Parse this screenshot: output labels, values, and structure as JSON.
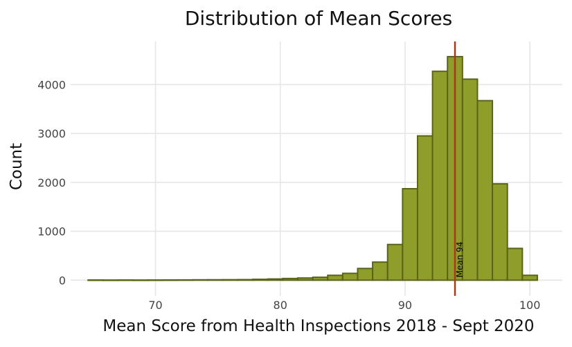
{
  "chart_data": {
    "type": "bar",
    "title": "Distribution of Mean Scores",
    "xlabel": "Mean Score from Health Inspections 2018 - Sept 2020",
    "ylabel": "Count",
    "xlim": [
      63.2,
      102.6
    ],
    "ylim": [
      -320,
      4880
    ],
    "x_ticks": [
      70,
      80,
      90,
      100
    ],
    "y_ticks": [
      0,
      1000,
      2000,
      3000,
      4000
    ],
    "grid": true,
    "bin_width": 1.2,
    "bins": [
      {
        "x0": 64.6,
        "count": 4
      },
      {
        "x0": 65.8,
        "count": 3
      },
      {
        "x0": 67.0,
        "count": 4
      },
      {
        "x0": 68.2,
        "count": 3
      },
      {
        "x0": 69.4,
        "count": 4
      },
      {
        "x0": 70.6,
        "count": 5
      },
      {
        "x0": 71.8,
        "count": 6
      },
      {
        "x0": 73.0,
        "count": 8
      },
      {
        "x0": 74.2,
        "count": 9
      },
      {
        "x0": 75.4,
        "count": 10
      },
      {
        "x0": 76.6,
        "count": 12
      },
      {
        "x0": 77.8,
        "count": 18
      },
      {
        "x0": 79.0,
        "count": 25
      },
      {
        "x0": 80.2,
        "count": 35
      },
      {
        "x0": 81.4,
        "count": 45
      },
      {
        "x0": 82.6,
        "count": 60
      },
      {
        "x0": 83.8,
        "count": 100
      },
      {
        "x0": 85.0,
        "count": 140
      },
      {
        "x0": 86.2,
        "count": 240
      },
      {
        "x0": 87.4,
        "count": 370
      },
      {
        "x0": 88.6,
        "count": 730
      },
      {
        "x0": 89.8,
        "count": 1870
      },
      {
        "x0": 91.0,
        "count": 2950
      },
      {
        "x0": 92.2,
        "count": 4270
      },
      {
        "x0": 93.4,
        "count": 4570
      },
      {
        "x0": 94.6,
        "count": 4110
      },
      {
        "x0": 95.8,
        "count": 3670
      },
      {
        "x0": 97.0,
        "count": 1970
      },
      {
        "x0": 98.2,
        "count": 650
      },
      {
        "x0": 99.4,
        "count": 100
      }
    ],
    "mean": {
      "value": 94,
      "label": "Mean 94",
      "color": "#a83a1a"
    },
    "bar_fill": "#8f9d2b",
    "bar_outline": "#5a6318"
  }
}
